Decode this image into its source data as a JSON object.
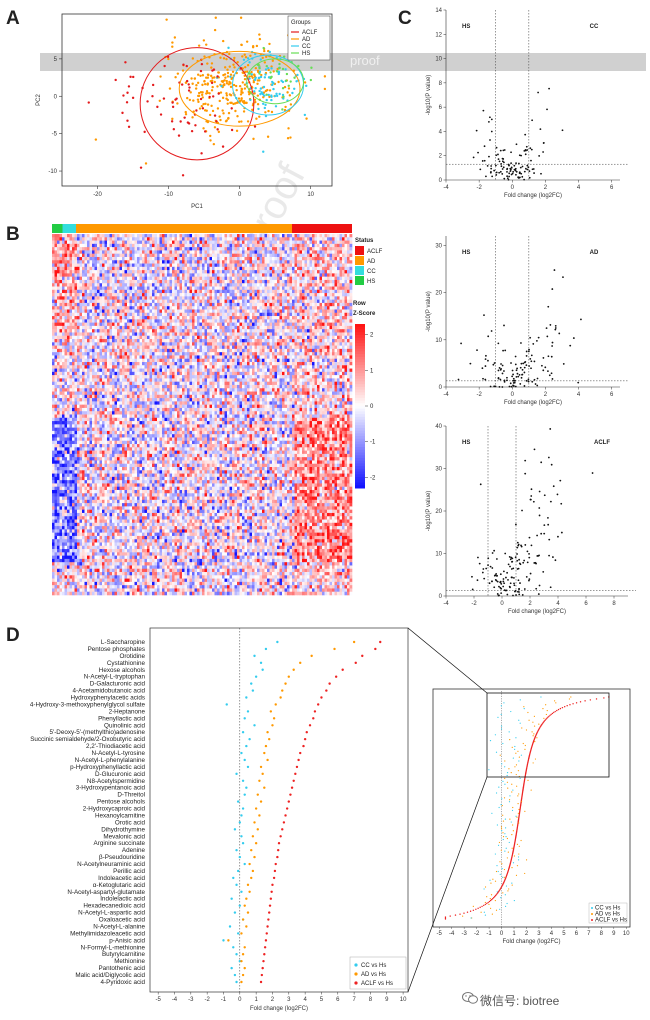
{
  "panels": {
    "A": "A",
    "B": "B",
    "C": "C",
    "D": "D"
  },
  "watermark": {
    "banner": "proof",
    "diagonal": "Journal Pre-proof"
  },
  "footer": {
    "text": "微信号: biotree"
  },
  "pca": {
    "xlabel": "PC1",
    "ylabel": "PC2",
    "xticks": [
      "-20",
      "-10",
      "0",
      "10"
    ],
    "yticks": [
      "-10",
      "-5",
      "0",
      "5"
    ],
    "legend_title": "Groups",
    "groups": [
      {
        "name": "ACLF",
        "color": "#e41a1c"
      },
      {
        "name": "AD",
        "color": "#ff9900"
      },
      {
        "name": "CC",
        "color": "#33ccee"
      },
      {
        "name": "HS",
        "color": "#66dd55"
      }
    ]
  },
  "heatmap": {
    "status_title": "Status",
    "status": [
      {
        "name": "ACLF",
        "color": "#ee1111"
      },
      {
        "name": "AD",
        "color": "#ff9900"
      },
      {
        "name": "CC",
        "color": "#33dddd"
      },
      {
        "name": "HS",
        "color": "#22cc44"
      }
    ],
    "zscore_title": "Row\nZ-Score",
    "zticks": [
      "2",
      "1",
      "0",
      "-1",
      "-2"
    ]
  },
  "chart_data": [
    {
      "type": "scatter",
      "id": "volcano-cc",
      "left_label": "HS",
      "right_label": "CC",
      "right_color": "#33ccee",
      "xlabel": "Fold change (log2FC)",
      "ylabel": "-log10(P value)",
      "xticks": [
        "-4",
        "-2",
        "0",
        "2",
        "4",
        "6"
      ],
      "yticks": [
        "0",
        "2",
        "4",
        "6",
        "8",
        "10",
        "12",
        "14"
      ],
      "xlim": [
        -4,
        6.5
      ],
      "ylim": [
        0,
        14
      ]
    },
    {
      "type": "scatter",
      "id": "volcano-ad",
      "left_label": "HS",
      "right_label": "AD",
      "right_color": "#ff9900",
      "xlabel": "Fold change (log2FC)",
      "ylabel": "-log10(P value)",
      "xticks": [
        "-4",
        "-2",
        "0",
        "2",
        "4",
        "6"
      ],
      "yticks": [
        "0",
        "10",
        "20",
        "30"
      ],
      "xlim": [
        -4,
        6.5
      ],
      "ylim": [
        0,
        32
      ]
    },
    {
      "type": "scatter",
      "id": "volcano-aclf",
      "left_label": "HS",
      "right_label": "ACLF",
      "right_color": "#ee2222",
      "xlabel": "Fold change (log2FC)",
      "ylabel": "-log10(P value)",
      "xticks": [
        "-4",
        "-2",
        "0",
        "2",
        "4",
        "6",
        "8"
      ],
      "yticks": [
        "0",
        "10",
        "20",
        "30",
        "40"
      ],
      "xlim": [
        -4,
        9
      ],
      "ylim": [
        0,
        40
      ]
    },
    {
      "type": "scatter",
      "id": "dotplot-fold",
      "xlabel": "Fold change (log2FC)",
      "xticks": [
        "-5",
        "-4",
        "-3",
        "-2",
        "-1",
        "0",
        "1",
        "2",
        "3",
        "4",
        "5",
        "6",
        "7",
        "8",
        "9",
        "10"
      ],
      "legend": [
        {
          "name": "CC vs Hs",
          "color": "#33ccee"
        },
        {
          "name": "AD vs Hs",
          "color": "#ff9900"
        },
        {
          "name": "ACLF vs Hs",
          "color": "#ee2222"
        }
      ],
      "metabolites": [
        "L-Saccharopine",
        "Pentose phosphates",
        "Orotidine",
        "Cystathionine",
        "Hexose alcohols",
        "N-Acetyl-L-tryptophan",
        "D-Galacturonic acid",
        "4-Acetamidobutanoic acid",
        "Hydroxyphenylacetic acids",
        "4-Hydroxy-3-methoxyphenylglycol sulfate",
        "2-Heptanone",
        "Phenyllactic acid",
        "Quinolinic acid",
        "5'-Deoxy-5'-(methylthio)adenosine",
        "Succinic semialdehyde/2-Oxobutyric acid",
        "2,2'-Thiodiacetic acid",
        "N-Acetyl-L-tyrosine",
        "N-Acetyl-L-phenylalanine",
        "p-Hydroxyphenyllactic acid",
        "D-Glucuronic acid",
        "N8-Acetylspermidine",
        "3-Hydroxypentanoic acid",
        "D-Threitol",
        "Pentose alcohols",
        "2-Hydroxycaproic acid",
        "Hexanoylcarnitine",
        "Orotic acid",
        "Dihydrothymine",
        "Mevalonic acid",
        "Arginine succinate",
        "Adenine",
        "β-Pseudouridine",
        "N-Acetylneuraminic acid",
        "Perillic acid",
        "Indoleacetic acid",
        "α-Ketoglutaric acid",
        "N-Acetyl-aspartyl-glutamate",
        "Indolelactic acid",
        "Hexadecanedioic acid",
        "N-Acetyl-L-aspartic acid",
        "Oxaloacetic acid",
        "N-Acetyl-L-alanine",
        "Methylimidazoleacetic acid",
        "p-Anisic acid",
        "N-Formyl-L-methionine",
        "Butyrylcarnitine",
        "Methionine",
        "Pantothenic acid",
        "Malic acid/Diglycolic acid",
        "4-Pyridoxic acid"
      ],
      "aclf": [
        8.6,
        8.3,
        7.5,
        7.1,
        6.3,
        5.9,
        5.5,
        5.3,
        5.0,
        4.8,
        4.6,
        4.5,
        4.3,
        4.1,
        4.0,
        3.9,
        3.7,
        3.6,
        3.5,
        3.4,
        3.3,
        3.2,
        3.1,
        3.0,
        2.9,
        2.8,
        2.7,
        2.6,
        2.5,
        2.4,
        2.35,
        2.3,
        2.2,
        2.15,
        2.1,
        2.0,
        1.95,
        1.9,
        1.85,
        1.8,
        1.75,
        1.7,
        1.65,
        1.6,
        1.55,
        1.5,
        1.45,
        1.4,
        1.35,
        1.3
      ],
      "ad": [
        7.0,
        5.8,
        4.4,
        3.7,
        3.3,
        3.0,
        2.8,
        2.6,
        2.5,
        2.2,
        1.9,
        2.1,
        2.0,
        1.7,
        1.8,
        1.6,
        1.5,
        1.7,
        1.3,
        1.4,
        1.2,
        1.5,
        1.1,
        1.3,
        1.0,
        1.2,
        0.9,
        1.1,
        0.8,
        1.0,
        0.7,
        0.9,
        0.6,
        0.8,
        0.7,
        0.5,
        0.6,
        0.4,
        0.3,
        0.5,
        0.2,
        0.4,
        0.1,
        -0.7,
        0.3,
        0.2,
        0.1,
        0.3,
        0.2,
        0.1
      ],
      "cc": [
        2.3,
        1.6,
        0.9,
        1.3,
        1.4,
        1.0,
        0.7,
        0.8,
        0.4,
        -0.8,
        0.5,
        0.3,
        0.9,
        0.2,
        0.6,
        0.4,
        0.1,
        0.3,
        0.5,
        -0.2,
        0.2,
        0.4,
        0.3,
        -0.1,
        0.2,
        0.1,
        0.0,
        -0.3,
        0.1,
        0.2,
        -0.2,
        0.0,
        0.3,
        -0.1,
        -0.4,
        -0.2,
        0.1,
        -0.5,
        0.0,
        -0.3,
        0.2,
        -0.6,
        -0.1,
        -1.0,
        -0.4,
        -0.2,
        0.0,
        -0.5,
        -0.3,
        -0.2
      ]
    },
    {
      "type": "scatter",
      "id": "dotplot-overview",
      "xlabel": "Fold change (log2FC)",
      "xticks": [
        "-5",
        "-4",
        "-3",
        "-2",
        "-1",
        "0",
        "1",
        "2",
        "3",
        "4",
        "5",
        "6",
        "7",
        "8",
        "9",
        "10"
      ],
      "legend": [
        {
          "name": "CC vs Hs",
          "color": "#33ccee"
        },
        {
          "name": "AD vs Hs",
          "color": "#ff9900"
        },
        {
          "name": "ACLF vs Hs",
          "color": "#ee2222"
        }
      ]
    }
  ]
}
